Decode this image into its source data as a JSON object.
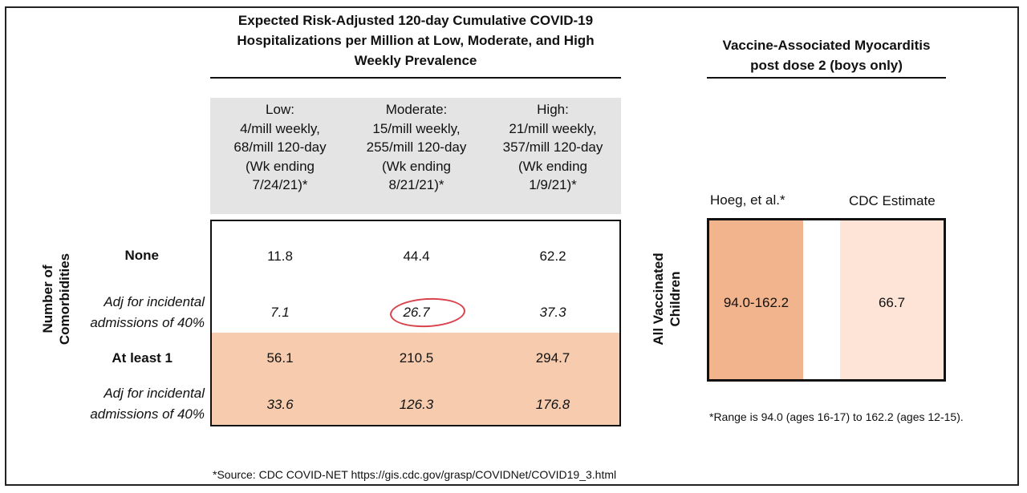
{
  "left_panel": {
    "title_lines": [
      "Expected Risk-Adjusted 120-day Cumulative COVID-19",
      "Hospitalizations per Million at Low, Moderate, and High",
      "Weekly Prevalence"
    ],
    "columns": [
      {
        "lines": [
          "Low:",
          "4/mill weekly,",
          "68/mill 120-day",
          "(Wk ending",
          "7/24/21)*"
        ]
      },
      {
        "lines": [
          "Moderate:",
          "15/mill weekly,",
          "255/mill 120-day",
          "(Wk ending",
          "8/21/21)*"
        ]
      },
      {
        "lines": [
          "High:",
          "21/mill weekly,",
          "357/mill 120-day",
          "(Wk ending",
          "1/9/21)*"
        ]
      }
    ],
    "axis_label_lines": [
      "Number of",
      "Comorbidities"
    ],
    "rows": [
      {
        "label_lines": [
          "None"
        ],
        "values": [
          "11.8",
          "44.4",
          "62.2"
        ]
      },
      {
        "label_lines": [
          "Adj for incidental",
          "admissions of 40%"
        ],
        "values": [
          "7.1",
          "26.7",
          "37.3"
        ]
      },
      {
        "label_lines": [
          "At least 1"
        ],
        "values": [
          "56.1",
          "210.5",
          "294.7"
        ]
      },
      {
        "label_lines": [
          "Adj for incidental",
          "admissions of 40%"
        ],
        "values": [
          "33.6",
          "126.3",
          "176.8"
        ]
      }
    ],
    "source_note": "*Source: CDC COVID-NET https://gis.cdc.gov/grasp/COVIDNet/COVID19_3.html"
  },
  "right_panel": {
    "title_lines": [
      "Vaccine-Associated Myocarditis",
      "post dose 2 (boys only)"
    ],
    "axis_label_lines": [
      "All Vaccinated",
      "Children"
    ],
    "col_labels": [
      "Hoeg, et al.*",
      "CDC Estimate"
    ],
    "values": [
      "94.0-162.2",
      "66.7"
    ],
    "footnote": "*Range is 94.0 (ages 16-17) to 162.2 (ages 12-15)."
  },
  "colors": {
    "peach_row": "#f7ccae",
    "hoeg_fill": "#f2b48c",
    "cdc_fill": "#fde4d6",
    "header_gray": "#e4e4e4",
    "highlight_circle": "#d9414b"
  }
}
